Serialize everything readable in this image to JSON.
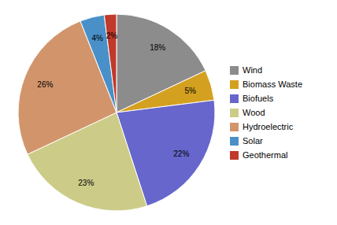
{
  "chart_data": {
    "type": "pie",
    "categories": [
      "Wind",
      "Biomass Waste",
      "Biofuels",
      "Wood",
      "Hydroelectric",
      "Solar",
      "Geothermal"
    ],
    "values": [
      18,
      5,
      22,
      23,
      26,
      4,
      2
    ],
    "value_labels": [
      "18%",
      "5%",
      "22%",
      "23%",
      "26%",
      "4%",
      "2%"
    ],
    "colors": [
      "#8C8C8C",
      "#D4A020",
      "#6666CC",
      "#CCCC88",
      "#D2956B",
      "#4A90C8",
      "#C0392B"
    ],
    "data_labels": true,
    "legend": "right"
  }
}
